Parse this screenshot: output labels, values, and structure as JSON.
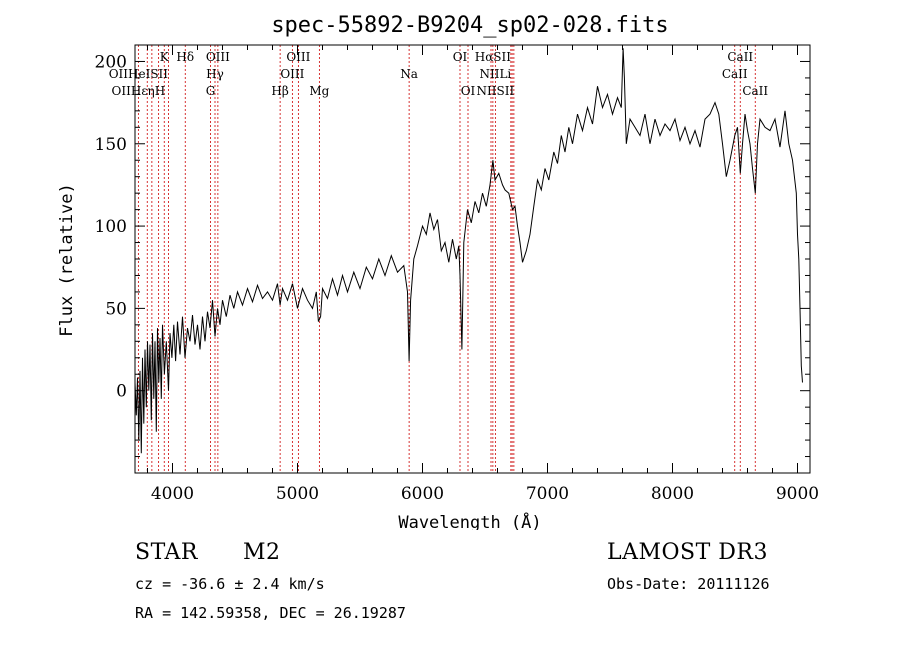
{
  "chart_data": {
    "type": "line",
    "title": "spec-55892-B9204_sp02-028.fits",
    "xlabel": "Wavelength (Å)",
    "ylabel": "Flux (relative)",
    "xlim": [
      3700,
      9100
    ],
    "ylim": [
      -50,
      210
    ],
    "x_ticks": [
      4000,
      5000,
      6000,
      7000,
      8000,
      9000
    ],
    "y_ticks": [
      0,
      50,
      100,
      150,
      200
    ],
    "grid": false,
    "series": [
      {
        "name": "flux",
        "points": [
          [
            3700,
            5
          ],
          [
            3710,
            -15
          ],
          [
            3720,
            8
          ],
          [
            3730,
            -30
          ],
          [
            3740,
            12
          ],
          [
            3750,
            -38
          ],
          [
            3760,
            20
          ],
          [
            3770,
            -20
          ],
          [
            3780,
            25
          ],
          [
            3790,
            -10
          ],
          [
            3800,
            30
          ],
          [
            3810,
            0
          ],
          [
            3820,
            28
          ],
          [
            3830,
            -18
          ],
          [
            3840,
            35
          ],
          [
            3850,
            -5
          ],
          [
            3860,
            30
          ],
          [
            3870,
            -25
          ],
          [
            3880,
            38
          ],
          [
            3890,
            5
          ],
          [
            3900,
            32
          ],
          [
            3910,
            -5
          ],
          [
            3920,
            40
          ],
          [
            3935,
            10
          ],
          [
            3950,
            30
          ],
          [
            3968,
            0
          ],
          [
            3980,
            35
          ],
          [
            3995,
            20
          ],
          [
            4010,
            40
          ],
          [
            4025,
            18
          ],
          [
            4040,
            42
          ],
          [
            4060,
            22
          ],
          [
            4080,
            45
          ],
          [
            4100,
            20
          ],
          [
            4120,
            38
          ],
          [
            4140,
            30
          ],
          [
            4160,
            46
          ],
          [
            4180,
            28
          ],
          [
            4200,
            40
          ],
          [
            4220,
            25
          ],
          [
            4240,
            45
          ],
          [
            4260,
            30
          ],
          [
            4280,
            48
          ],
          [
            4300,
            38
          ],
          [
            4320,
            55
          ],
          [
            4340,
            33
          ],
          [
            4360,
            50
          ],
          [
            4380,
            40
          ],
          [
            4400,
            55
          ],
          [
            4430,
            45
          ],
          [
            4460,
            58
          ],
          [
            4490,
            50
          ],
          [
            4520,
            60
          ],
          [
            4560,
            52
          ],
          [
            4600,
            62
          ],
          [
            4640,
            54
          ],
          [
            4680,
            64
          ],
          [
            4720,
            56
          ],
          [
            4760,
            60
          ],
          [
            4800,
            55
          ],
          [
            4840,
            65
          ],
          [
            4861,
            52
          ],
          [
            4880,
            62
          ],
          [
            4920,
            55
          ],
          [
            4960,
            65
          ],
          [
            5000,
            50
          ],
          [
            5040,
            62
          ],
          [
            5080,
            55
          ],
          [
            5120,
            50
          ],
          [
            5150,
            60
          ],
          [
            5167,
            42
          ],
          [
            5185,
            45
          ],
          [
            5200,
            62
          ],
          [
            5240,
            56
          ],
          [
            5280,
            68
          ],
          [
            5320,
            58
          ],
          [
            5360,
            70
          ],
          [
            5400,
            60
          ],
          [
            5450,
            72
          ],
          [
            5500,
            62
          ],
          [
            5550,
            75
          ],
          [
            5600,
            68
          ],
          [
            5650,
            80
          ],
          [
            5700,
            70
          ],
          [
            5750,
            82
          ],
          [
            5800,
            72
          ],
          [
            5850,
            76
          ],
          [
            5880,
            60
          ],
          [
            5893,
            18
          ],
          [
            5905,
            55
          ],
          [
            5930,
            80
          ],
          [
            5960,
            88
          ],
          [
            6000,
            100
          ],
          [
            6030,
            95
          ],
          [
            6060,
            108
          ],
          [
            6090,
            98
          ],
          [
            6120,
            104
          ],
          [
            6150,
            85
          ],
          [
            6180,
            90
          ],
          [
            6210,
            78
          ],
          [
            6240,
            92
          ],
          [
            6270,
            80
          ],
          [
            6290,
            88
          ],
          [
            6300,
            70
          ],
          [
            6315,
            25
          ],
          [
            6330,
            90
          ],
          [
            6360,
            110
          ],
          [
            6390,
            102
          ],
          [
            6420,
            115
          ],
          [
            6450,
            108
          ],
          [
            6480,
            120
          ],
          [
            6510,
            112
          ],
          [
            6540,
            125
          ],
          [
            6563,
            140
          ],
          [
            6580,
            128
          ],
          [
            6610,
            132
          ],
          [
            6640,
            125
          ],
          [
            6660,
            122
          ],
          [
            6690,
            120
          ],
          [
            6720,
            110
          ],
          [
            6740,
            112
          ],
          [
            6760,
            100
          ],
          [
            6780,
            90
          ],
          [
            6800,
            78
          ],
          [
            6830,
            85
          ],
          [
            6860,
            95
          ],
          [
            6890,
            112
          ],
          [
            6920,
            128
          ],
          [
            6950,
            122
          ],
          [
            6980,
            135
          ],
          [
            7010,
            128
          ],
          [
            7050,
            145
          ],
          [
            7080,
            138
          ],
          [
            7110,
            155
          ],
          [
            7140,
            145
          ],
          [
            7170,
            160
          ],
          [
            7200,
            150
          ],
          [
            7240,
            168
          ],
          [
            7280,
            158
          ],
          [
            7320,
            172
          ],
          [
            7360,
            162
          ],
          [
            7400,
            185
          ],
          [
            7440,
            172
          ],
          [
            7480,
            180
          ],
          [
            7520,
            168
          ],
          [
            7560,
            178
          ],
          [
            7590,
            172
          ],
          [
            7605,
            208
          ],
          [
            7615,
            190
          ],
          [
            7630,
            150
          ],
          [
            7660,
            165
          ],
          [
            7700,
            160
          ],
          [
            7740,
            155
          ],
          [
            7780,
            168
          ],
          [
            7820,
            150
          ],
          [
            7860,
            165
          ],
          [
            7900,
            155
          ],
          [
            7940,
            162
          ],
          [
            7980,
            158
          ],
          [
            8020,
            165
          ],
          [
            8060,
            152
          ],
          [
            8100,
            160
          ],
          [
            8140,
            150
          ],
          [
            8180,
            158
          ],
          [
            8220,
            148
          ],
          [
            8260,
            165
          ],
          [
            8300,
            168
          ],
          [
            8340,
            175
          ],
          [
            8370,
            168
          ],
          [
            8400,
            150
          ],
          [
            8430,
            130
          ],
          [
            8460,
            140
          ],
          [
            8498,
            155
          ],
          [
            8520,
            160
          ],
          [
            8542,
            132
          ],
          [
            8560,
            150
          ],
          [
            8580,
            168
          ],
          [
            8600,
            158
          ],
          [
            8620,
            150
          ],
          [
            8640,
            135
          ],
          [
            8662,
            120
          ],
          [
            8680,
            150
          ],
          [
            8700,
            165
          ],
          [
            8740,
            160
          ],
          [
            8780,
            158
          ],
          [
            8820,
            165
          ],
          [
            8860,
            148
          ],
          [
            8900,
            170
          ],
          [
            8930,
            150
          ],
          [
            8960,
            140
          ],
          [
            8990,
            120
          ],
          [
            9000,
            95
          ],
          [
            9010,
            80
          ],
          [
            9020,
            50
          ],
          [
            9030,
            15
          ],
          [
            9040,
            5
          ]
        ]
      }
    ],
    "line_labels": [
      {
        "text": "Hδ",
        "wavelength": 4102,
        "row": 1
      },
      {
        "text": "K",
        "wavelength": 3934,
        "row": 1
      },
      {
        "text": "Hδ",
        "wavelength": 4102,
        "row": 1
      },
      {
        "text": "OIII",
        "wavelength": 4363,
        "row": 1
      },
      {
        "text": "OIII",
        "wavelength": 5007,
        "row": 1
      },
      {
        "text": "OI",
        "wavelength": 6300,
        "row": 1
      },
      {
        "text": "HαSII",
        "wavelength": 6563,
        "row": 1
      },
      {
        "text": "CaII",
        "wavelength": 8542,
        "row": 1
      },
      {
        "text": "OIIHeISII",
        "wavelength": 3727,
        "row": 2
      },
      {
        "text": "Hγ",
        "wavelength": 4340,
        "row": 2
      },
      {
        "text": "OIII",
        "wavelength": 4959,
        "row": 2
      },
      {
        "text": "Na",
        "wavelength": 5893,
        "row": 2
      },
      {
        "text": "NIILi",
        "wavelength": 6583,
        "row": 2
      },
      {
        "text": "CaII",
        "wavelength": 8498,
        "row": 2
      },
      {
        "text": "OIIHεηH",
        "wavelength": 3727,
        "row": 3
      },
      {
        "text": "G",
        "wavelength": 4304,
        "row": 3
      },
      {
        "text": "Hβ",
        "wavelength": 4861,
        "row": 3
      },
      {
        "text": "Mg",
        "wavelength": 5175,
        "row": 3
      },
      {
        "text": "OI",
        "wavelength": 6364,
        "row": 3
      },
      {
        "text": "NIISII",
        "wavelength": 6583,
        "row": 3
      },
      {
        "text": "CaII",
        "wavelength": 8662,
        "row": 3
      }
    ],
    "line_positions": [
      3727,
      3798,
      3835,
      3889,
      3934,
      3968,
      4102,
      4304,
      4340,
      4363,
      4861,
      4959,
      5007,
      5175,
      5893,
      6300,
      6364,
      6548,
      6563,
      6583,
      6707,
      6717,
      6731,
      8498,
      8542,
      8662
    ]
  },
  "info": {
    "object_class": "STAR",
    "subclass": "M2",
    "survey": "LAMOST DR3",
    "redshift": "cz = -36.6 ± 2.4 km/s",
    "obs_date": "Obs-Date: 20111126",
    "coords": "RA = 142.59358, DEC =  26.19287"
  },
  "colors": {
    "spectrum": "#000000",
    "line_marker": "#cc0000",
    "axes": "#000000"
  }
}
